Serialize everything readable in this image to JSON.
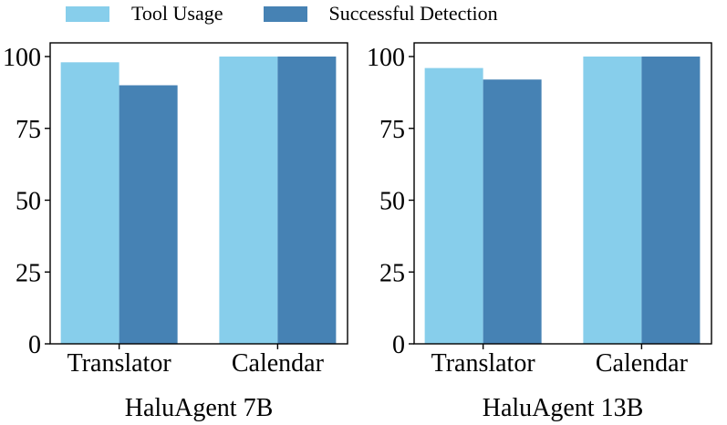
{
  "legend": {
    "items": [
      {
        "label": "Tool Usage",
        "color": "#87ceeb"
      },
      {
        "label": "Successful Detection",
        "color": "#4682b4"
      }
    ]
  },
  "chart_data": [
    {
      "type": "bar",
      "xlabel": "HaluAgent 7B",
      "ylabel": "",
      "categories": [
        "Translator",
        "Calendar"
      ],
      "series": [
        {
          "name": "Tool Usage",
          "values": [
            98,
            100
          ]
        },
        {
          "name": "Successful Detection",
          "values": [
            90,
            100
          ]
        }
      ],
      "ylim": [
        0,
        100
      ],
      "yticks": [
        0,
        25,
        50,
        75,
        100
      ],
      "grid": false
    },
    {
      "type": "bar",
      "xlabel": "HaluAgent 13B",
      "ylabel": "",
      "categories": [
        "Translator",
        "Calendar"
      ],
      "series": [
        {
          "name": "Tool Usage",
          "values": [
            96,
            100
          ]
        },
        {
          "name": "Successful Detection",
          "values": [
            92,
            100
          ]
        }
      ],
      "ylim": [
        0,
        100
      ],
      "yticks": [
        0,
        25,
        50,
        75,
        100
      ],
      "grid": false
    }
  ]
}
